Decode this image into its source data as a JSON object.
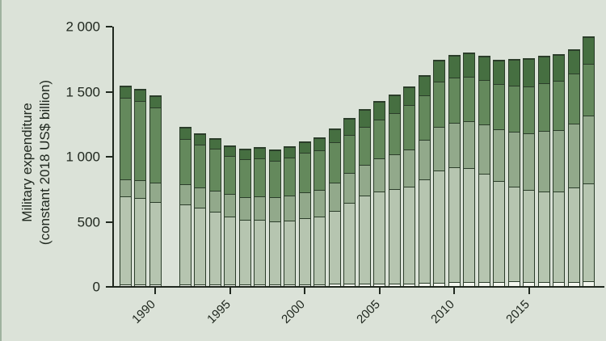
{
  "figure": {
    "y_axis": {
      "title_line1": "Military expenditure",
      "title_line2": "(constant 2018 US$ billion)",
      "ticks": [
        {
          "value": 0,
          "label": "0"
        },
        {
          "value": 500,
          "label": "500"
        },
        {
          "value": 1000,
          "label": "1 000"
        },
        {
          "value": 1500,
          "label": "1 500"
        },
        {
          "value": 2000,
          "label": "2 000"
        }
      ],
      "range": [
        0,
        2000
      ]
    },
    "x_axis": {
      "ticks": [
        {
          "year": 1990,
          "label": "1990"
        },
        {
          "year": 1995,
          "label": "1995"
        },
        {
          "year": 2000,
          "label": "2000"
        },
        {
          "year": 2005,
          "label": "2005"
        },
        {
          "year": 2010,
          "label": "2010"
        },
        {
          "year": 2015,
          "label": "2015"
        }
      ]
    }
  },
  "colors": {
    "background": "#dbe2d8",
    "axis": "#20281f",
    "text": "#20281f",
    "bar_border": "#2b3d2a",
    "segments": [
      "#f3f6ee",
      "#b6c5b0",
      "#92a98b",
      "#64895c",
      "#466f41"
    ]
  },
  "chart_data": {
    "type": "bar",
    "stacked": true,
    "title": "",
    "xlabel": "",
    "ylabel": "Military expenditure (constant 2018 US$ billion)",
    "ylim": [
      0,
      2000
    ],
    "grid": false,
    "legend": "none",
    "x": [
      1988,
      1989,
      1990,
      1991,
      1992,
      1993,
      1994,
      1995,
      1996,
      1997,
      1998,
      1999,
      2000,
      2001,
      2002,
      2003,
      2004,
      2005,
      2006,
      2007,
      2008,
      2009,
      2010,
      2011,
      2012,
      2013,
      2014,
      2015,
      2016,
      2017,
      2018,
      2019
    ],
    "missing_years": [
      1991
    ],
    "series": [
      {
        "name": "segment-1-bottom",
        "color": "#f3f6ee",
        "values": [
          17,
          17,
          18,
          null,
          18,
          18,
          19,
          19,
          18,
          19,
          18,
          19,
          20,
          21,
          22,
          23,
          25,
          26,
          27,
          28,
          31,
          33,
          35,
          36,
          36,
          38,
          41,
          40,
          38,
          38,
          40,
          43
        ]
      },
      {
        "name": "segment-2",
        "color": "#b6c5b0",
        "values": [
          676,
          668,
          637,
          null,
          614,
          590,
          559,
          524,
          496,
          495,
          486,
          490,
          511,
          519,
          562,
          625,
          674,
          710,
          727,
          745,
          796,
          862,
          886,
          878,
          833,
          773,
          728,
          703,
          698,
          695,
          722,
          754
        ]
      },
      {
        "name": "segment-3",
        "color": "#92a98b",
        "values": [
          136,
          138,
          145,
          null,
          155,
          158,
          162,
          170,
          176,
          180,
          183,
          192,
          196,
          204,
          219,
          228,
          239,
          250,
          263,
          282,
          305,
          333,
          343,
          362,
          378,
          398,
          425,
          438,
          460,
          475,
          495,
          523
        ]
      },
      {
        "name": "segment-4",
        "color": "#64895c",
        "values": [
          625,
          607,
          580,
          null,
          351,
          330,
          322,
          295,
          290,
          292,
          285,
          293,
          303,
          308,
          310,
          290,
          295,
          300,
          318,
          340,
          342,
          352,
          345,
          342,
          345,
          348,
          355,
          360,
          368,
          376,
          382,
          394
        ]
      },
      {
        "name": "segment-5-top",
        "color": "#466f41",
        "values": [
          87,
          85,
          83,
          null,
          86,
          78,
          75,
          73,
          76,
          82,
          78,
          78,
          85,
          91,
          98,
          125,
          130,
          135,
          140,
          140,
          150,
          158,
          165,
          176,
          180,
          185,
          195,
          210,
          205,
          198,
          183,
          203
        ]
      }
    ]
  }
}
